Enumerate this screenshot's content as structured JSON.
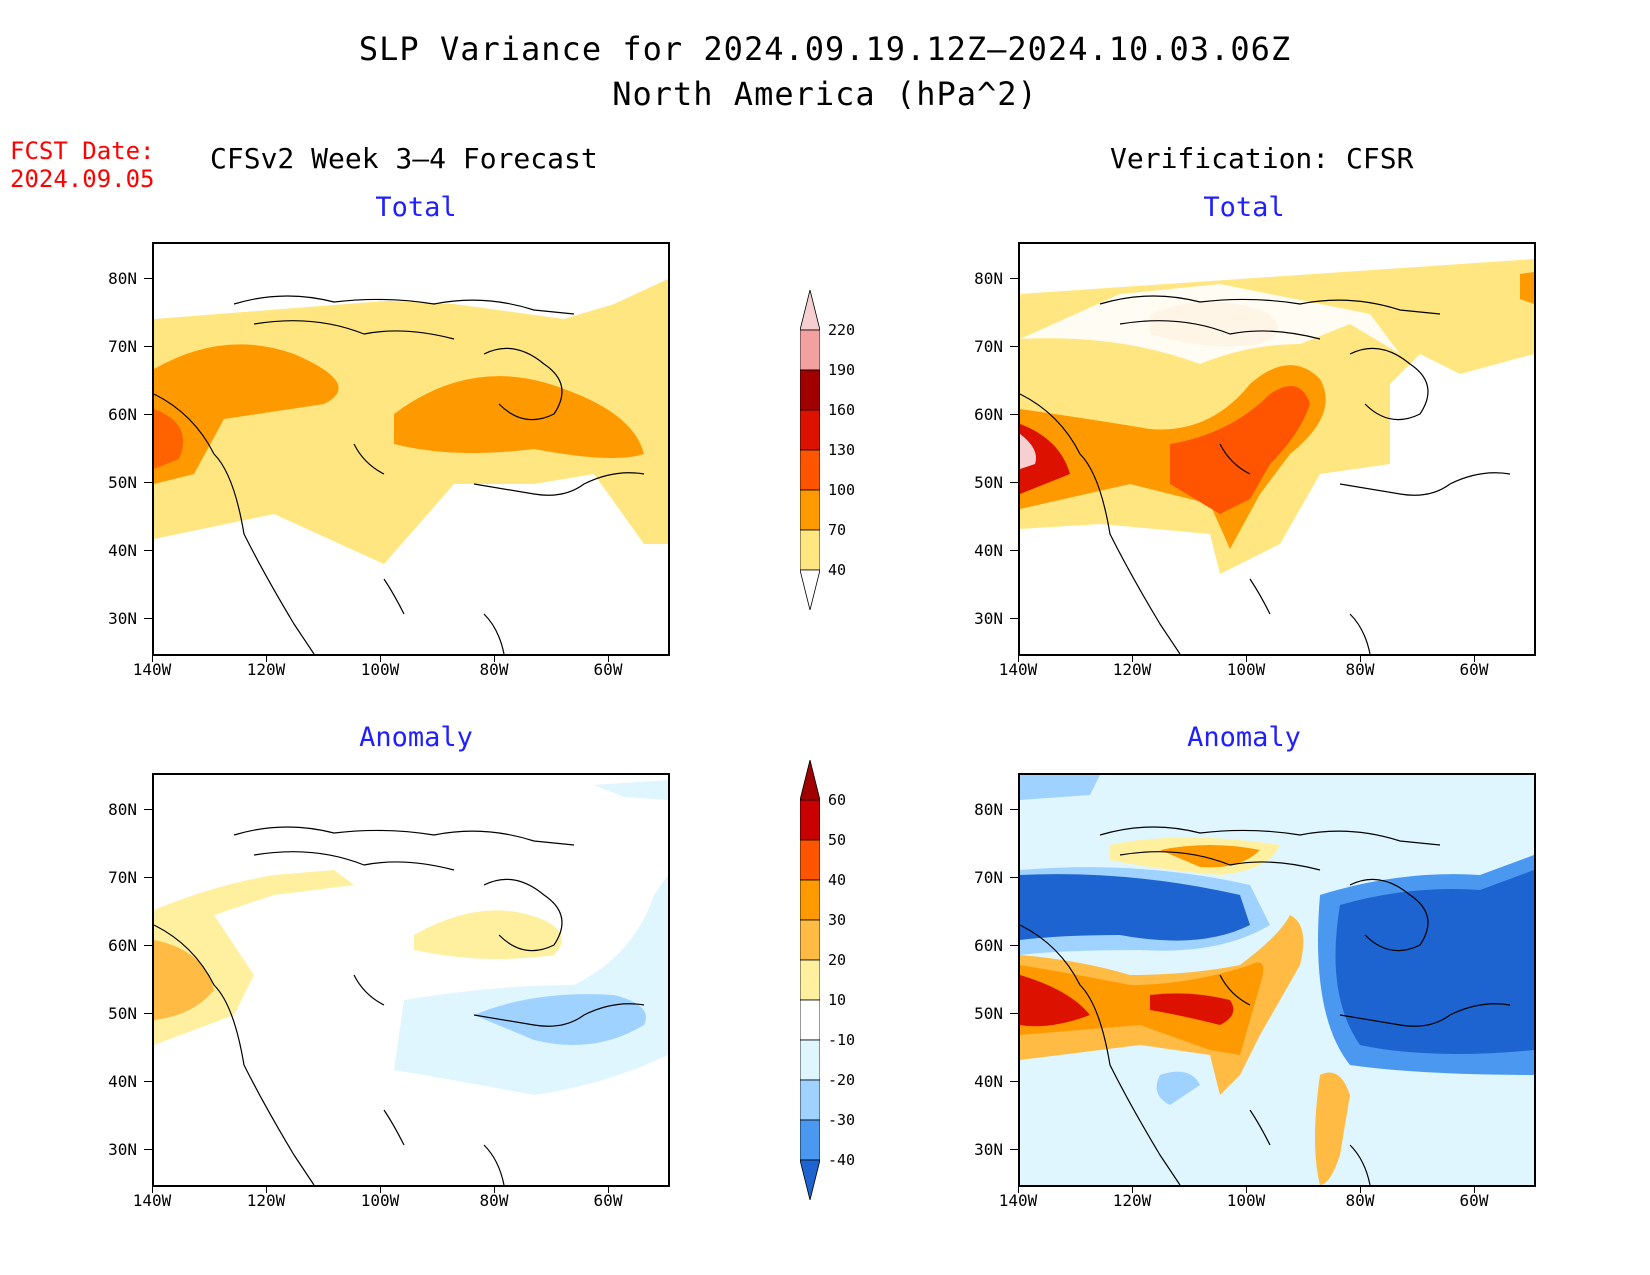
{
  "title": {
    "line1": "SLP Variance for 2024.09.19.12Z–2024.10.03.06Z",
    "line2": "North America (hPa^2)"
  },
  "fcst": {
    "label": "FCST Date:",
    "date": "2024.09.05"
  },
  "columns": {
    "left": "CFSv2 Week 3–4 Forecast",
    "right": "Verification: CFSR"
  },
  "panels": {
    "total": "Total",
    "anomaly": "Anomaly"
  },
  "axes": {
    "lat_labels": [
      "80N",
      "70N",
      "60N",
      "50N",
      "40N",
      "30N"
    ],
    "lon_labels": [
      "140W",
      "120W",
      "100W",
      "80W",
      "60W"
    ]
  },
  "colorbar_total": {
    "levels": [
      "220",
      "190",
      "160",
      "130",
      "100",
      "70",
      "40"
    ],
    "colors": [
      "#f3a0a0",
      "#a00000",
      "#dd1100",
      "#ff5500",
      "#ff9900",
      "#ffe680"
    ]
  },
  "colorbar_anomaly": {
    "levels": [
      "60",
      "50",
      "40",
      "30",
      "20",
      "10",
      "-10",
      "-20",
      "-30",
      "-40"
    ],
    "colors": [
      "#c80000",
      "#ff5500",
      "#ff9900",
      "#ffbb44",
      "#fff0a0",
      "#ffffff",
      "#dff6ff",
      "#a0d2ff",
      "#4a98ef",
      "#1e64d0"
    ]
  }
}
